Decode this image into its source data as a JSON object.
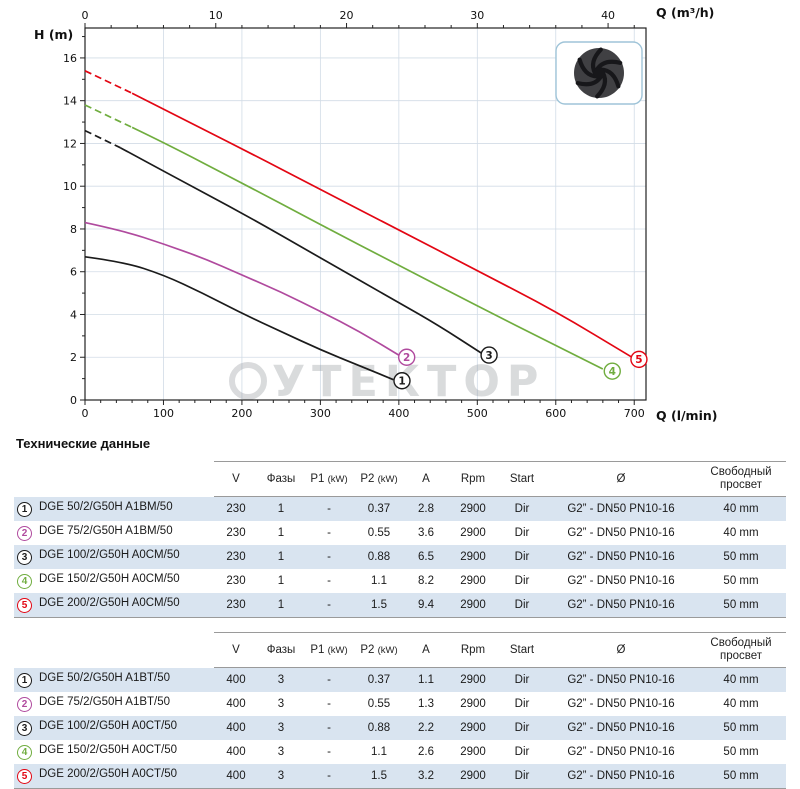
{
  "chart_data": {
    "type": "line",
    "title": "",
    "watermark_text": "УТЕКТОР",
    "x_bottom": {
      "label": "Q (l/min)",
      "min": 0,
      "max": 715,
      "major_ticks": [
        0,
        100,
        200,
        300,
        400,
        500,
        600,
        700
      ],
      "minor_step": 20
    },
    "x_top": {
      "label": "Q (m³/h)",
      "major_ticks": [
        0,
        10,
        20,
        30,
        40
      ],
      "minor_step": 2,
      "lmin_per_unit": 16.6667
    },
    "y_axis": {
      "label": "H (m)",
      "min": 0,
      "max": 17.4,
      "major_ticks": [
        0,
        2,
        4,
        6,
        8,
        10,
        12,
        14,
        16
      ],
      "minor_step": 1
    },
    "grid": true,
    "series": [
      {
        "id": "1",
        "color": "#1b1b1b",
        "dash_lead": 0,
        "points": [
          [
            0,
            6.7
          ],
          [
            50,
            6.45
          ],
          [
            100,
            5.85
          ],
          [
            150,
            5.0
          ],
          [
            200,
            4.05
          ],
          [
            250,
            3.2
          ],
          [
            300,
            2.35
          ],
          [
            350,
            1.6
          ],
          [
            393,
            0.95
          ]
        ],
        "label_at": [
          404,
          0.9
        ]
      },
      {
        "id": "2",
        "color": "#b04a9e",
        "dash_lead": 0,
        "points": [
          [
            0,
            8.3
          ],
          [
            50,
            7.9
          ],
          [
            100,
            7.3
          ],
          [
            150,
            6.65
          ],
          [
            200,
            5.85
          ],
          [
            250,
            5.05
          ],
          [
            300,
            4.15
          ],
          [
            350,
            3.2
          ],
          [
            400,
            2.1
          ]
        ],
        "label_at": [
          410,
          2.0
        ]
      },
      {
        "id": "3",
        "color": "#1b1b1b",
        "dash_lead": 45,
        "points": [
          [
            0,
            12.6
          ],
          [
            45,
            11.8
          ],
          [
            100,
            10.7
          ],
          [
            200,
            8.75
          ],
          [
            300,
            6.65
          ],
          [
            400,
            4.55
          ],
          [
            450,
            3.5
          ],
          [
            505,
            2.2
          ]
        ],
        "label_at": [
          515,
          2.1
        ]
      },
      {
        "id": "4",
        "color": "#70ad3f",
        "dash_lead": 60,
        "points": [
          [
            0,
            13.8
          ],
          [
            60,
            12.75
          ],
          [
            100,
            12.05
          ],
          [
            200,
            10.15
          ],
          [
            300,
            8.2
          ],
          [
            400,
            6.3
          ],
          [
            500,
            4.4
          ],
          [
            600,
            2.55
          ],
          [
            660,
            1.45
          ]
        ],
        "label_at": [
          672,
          1.35
        ]
      },
      {
        "id": "5",
        "color": "#e30613",
        "dash_lead": 60,
        "points": [
          [
            0,
            15.4
          ],
          [
            60,
            14.35
          ],
          [
            100,
            13.6
          ],
          [
            200,
            11.75
          ],
          [
            300,
            9.85
          ],
          [
            400,
            7.95
          ],
          [
            500,
            6.05
          ],
          [
            600,
            4.15
          ],
          [
            697,
            2.0
          ]
        ],
        "label_at": [
          706,
          1.9
        ]
      }
    ]
  },
  "tables": {
    "heading": "Технические данные",
    "columns": [
      "V",
      "Фазы",
      "P1 (kW)",
      "P2 (kW)",
      "A",
      "Rpm",
      "Start",
      "Ø",
      "Свободный просвет"
    ],
    "groups": [
      [
        {
          "num": "1",
          "color": "#1b1b1b",
          "model": "DGE 50/2/G50H A1BM/50",
          "values": [
            "230",
            "1",
            "-",
            "0.37",
            "2.8",
            "2900",
            "Dir",
            "G2” - DN50 PN10-16",
            "40 mm"
          ]
        },
        {
          "num": "2",
          "color": "#b04a9e",
          "model": "DGE 75/2/G50H A1BM/50",
          "values": [
            "230",
            "1",
            "-",
            "0.55",
            "3.6",
            "2900",
            "Dir",
            "G2” - DN50 PN10-16",
            "40 mm"
          ]
        },
        {
          "num": "3",
          "color": "#1b1b1b",
          "model": "DGE 100/2/G50H A0CM/50",
          "values": [
            "230",
            "1",
            "-",
            "0.88",
            "6.5",
            "2900",
            "Dir",
            "G2” - DN50 PN10-16",
            "50 mm"
          ]
        },
        {
          "num": "4",
          "color": "#70ad3f",
          "model": "DGE 150/2/G50H A0CM/50",
          "values": [
            "230",
            "1",
            "-",
            "1.1",
            "8.2",
            "2900",
            "Dir",
            "G2” - DN50 PN10-16",
            "50 mm"
          ]
        },
        {
          "num": "5",
          "color": "#e30613",
          "model": "DGE 200/2/G50H A0CM/50",
          "values": [
            "230",
            "1",
            "-",
            "1.5",
            "9.4",
            "2900",
            "Dir",
            "G2” - DN50 PN10-16",
            "50 mm"
          ]
        }
      ],
      [
        {
          "num": "1",
          "color": "#1b1b1b",
          "model": "DGE 50/2/G50H A1BT/50",
          "values": [
            "400",
            "3",
            "-",
            "0.37",
            "1.1",
            "2900",
            "Dir",
            "G2” - DN50 PN10-16",
            "40 mm"
          ]
        },
        {
          "num": "2",
          "color": "#b04a9e",
          "model": "DGE 75/2/G50H A1BT/50",
          "values": [
            "400",
            "3",
            "-",
            "0.55",
            "1.3",
            "2900",
            "Dir",
            "G2” - DN50 PN10-16",
            "40 mm"
          ]
        },
        {
          "num": "3",
          "color": "#1b1b1b",
          "model": "DGE 100/2/G50H A0CT/50",
          "values": [
            "400",
            "3",
            "-",
            "0.88",
            "2.2",
            "2900",
            "Dir",
            "G2” - DN50 PN10-16",
            "50 mm"
          ]
        },
        {
          "num": "4",
          "color": "#70ad3f",
          "model": "DGE 150/2/G50H A0CT/50",
          "values": [
            "400",
            "3",
            "-",
            "1.1",
            "2.6",
            "2900",
            "Dir",
            "G2” - DN50 PN10-16",
            "50 mm"
          ]
        },
        {
          "num": "5",
          "color": "#e30613",
          "model": "DGE 200/2/G50H A0CT/50",
          "values": [
            "400",
            "3",
            "-",
            "1.5",
            "3.2",
            "2900",
            "Dir",
            "G2” - DN50 PN10-16",
            "50 mm"
          ]
        }
      ]
    ]
  }
}
